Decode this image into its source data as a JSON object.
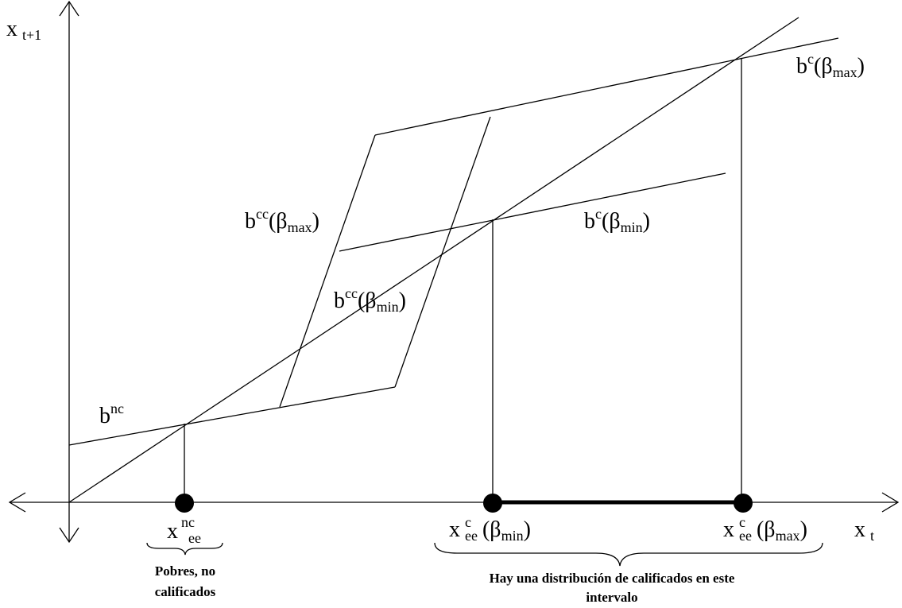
{
  "axes": {
    "y_label": [
      "x",
      "t+1"
    ],
    "x_label": [
      "x",
      "t"
    ]
  },
  "curves": {
    "b_c_max": [
      "b",
      "c",
      "(β",
      "max",
      ")"
    ],
    "b_cc_max": [
      "b",
      "cc",
      "(β",
      "max",
      ")"
    ],
    "b_c_min": [
      "b",
      "c",
      "(β",
      "min",
      ")"
    ],
    "b_cc_min": [
      "b",
      "cc",
      "(β",
      "min",
      ")"
    ],
    "b_nc": [
      "b",
      "nc"
    ]
  },
  "points": {
    "x_nc_ee": [
      "x",
      "nc",
      "ee"
    ],
    "x_c_ee_min": [
      "x",
      "c",
      "ee",
      "(β",
      "min",
      ")"
    ],
    "x_c_ee_max": [
      "x",
      "c",
      "ee",
      "(β",
      "max",
      ")"
    ]
  },
  "captions": {
    "poor": [
      "Pobres, no",
      "calificados"
    ],
    "interval": [
      "Hay una distribución de calificados en este",
      "intervalo"
    ]
  }
}
